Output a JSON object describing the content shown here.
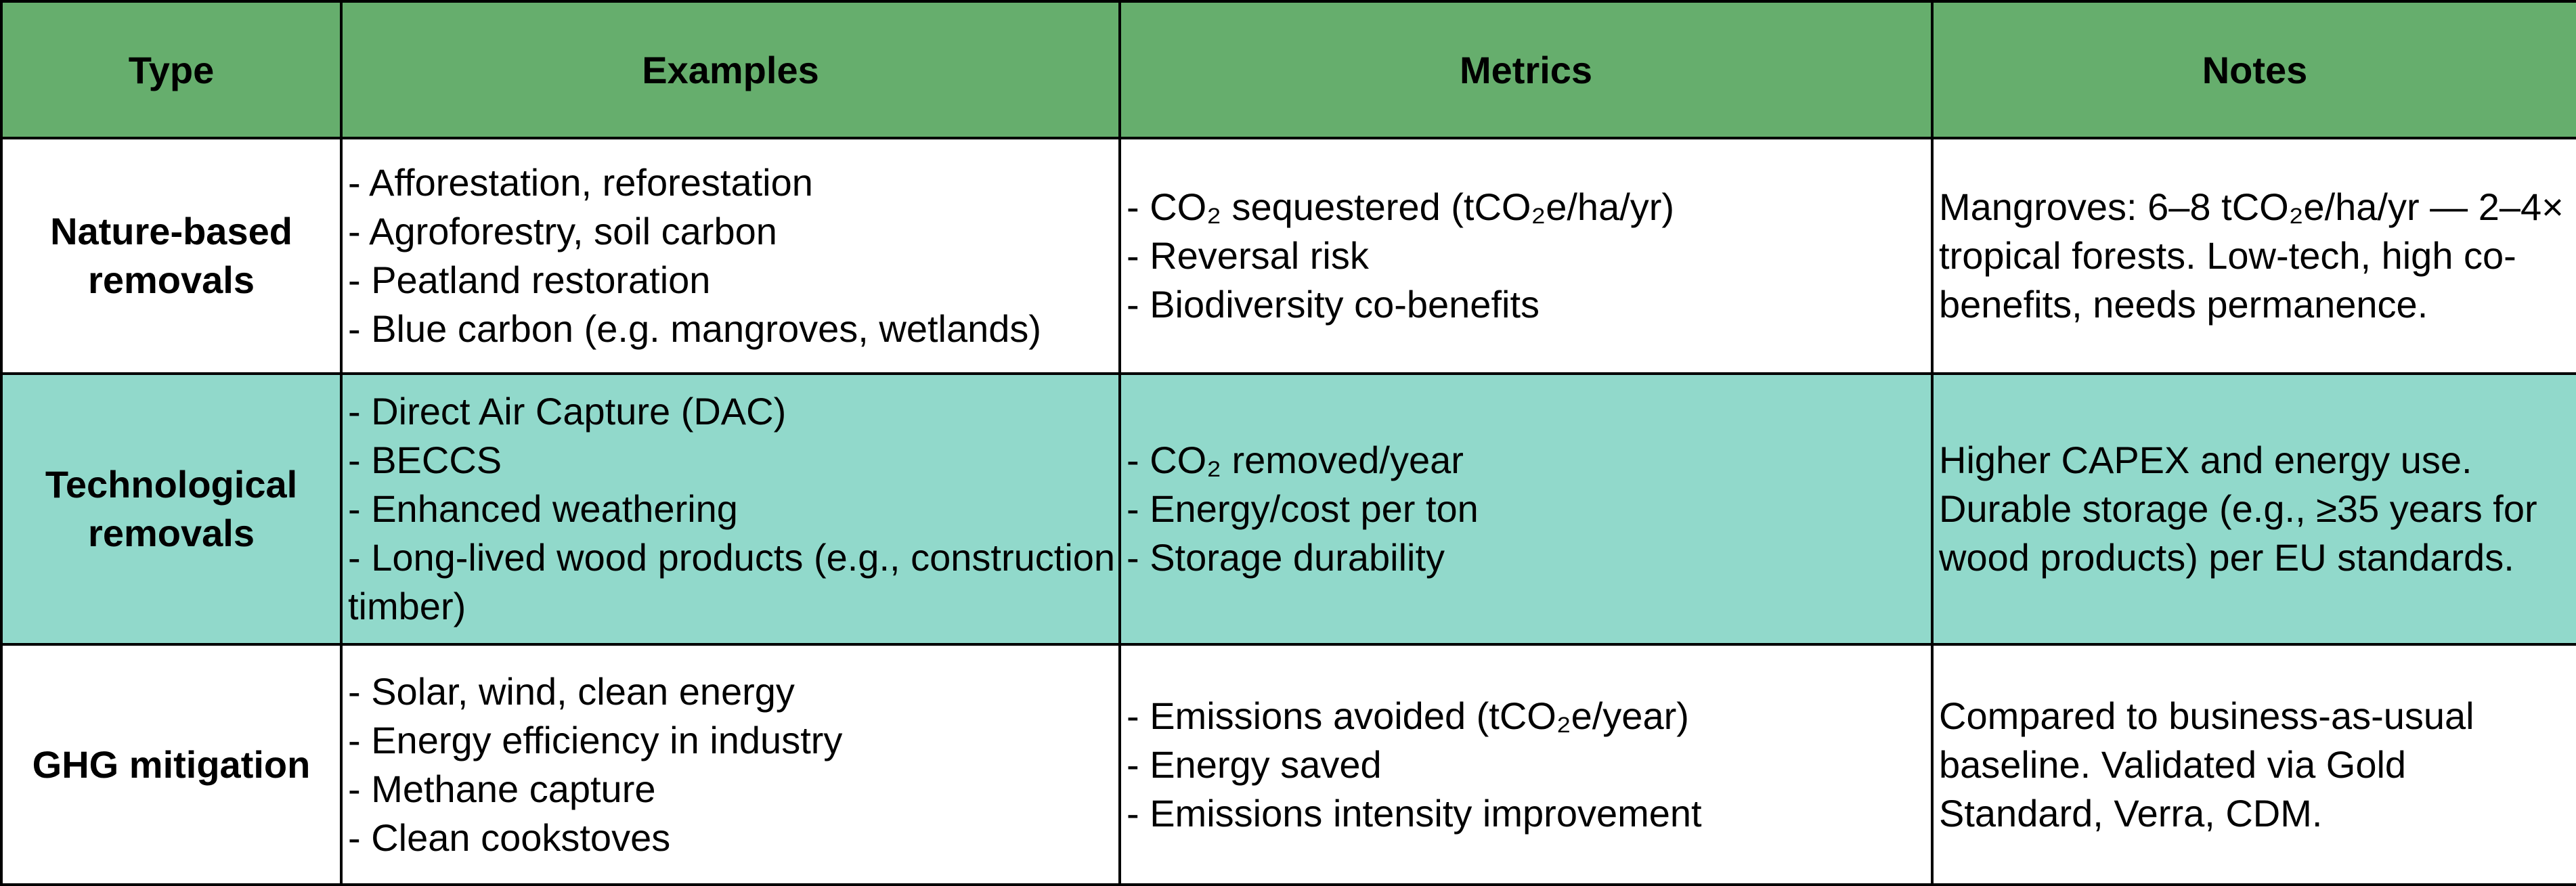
{
  "colors": {
    "header_bg": "#66ae6d",
    "row_white": "#ffffff",
    "row_teal": "#91d9cb",
    "border": "#000000"
  },
  "table": {
    "headers": [
      "Type",
      "Examples",
      "Metrics",
      "Notes"
    ],
    "rows": [
      {
        "type_line1": "Nature-based",
        "type_line2": "removals",
        "examples": [
          "- Afforestation, reforestation",
          "- Agroforestry, soil carbon",
          "- Peatland restoration",
          "- Blue carbon (e.g. mangroves, wetlands)"
        ],
        "metrics": [
          "- CO₂ sequestered (tCO₂e/ha/yr)",
          "- Reversal risk",
          "- Biodiversity co-benefits"
        ],
        "notes": "Mangroves: 6–8 tCO₂e/ha/yr — 2–4× tropical forests. Low-tech, high co-benefits, needs permanence."
      },
      {
        "type_line1": "Technological",
        "type_line2": "removals",
        "examples": [
          "- Direct Air Capture (DAC)",
          "- BECCS",
          "- Enhanced weathering",
          "- Long-lived wood products (e.g., construction timber)"
        ],
        "metrics": [
          "- CO₂ removed/year",
          "- Energy/cost per ton",
          "- Storage durability"
        ],
        "notes": "Higher CAPEX and energy use. Durable storage (e.g., ≥35 years for wood products) per EU standards."
      },
      {
        "type_line1": "GHG mitigation",
        "type_line2": "",
        "examples": [
          "- Solar, wind, clean energy",
          "- Energy efficiency in industry",
          "- Methane capture",
          "- Clean cookstoves"
        ],
        "metrics": [
          "- Emissions avoided (tCO₂e/year)",
          "- Energy saved",
          "- Emissions intensity improvement"
        ],
        "notes": "Compared to business-as-usual baseline. Validated via Gold Standard, Verra, CDM."
      }
    ]
  }
}
